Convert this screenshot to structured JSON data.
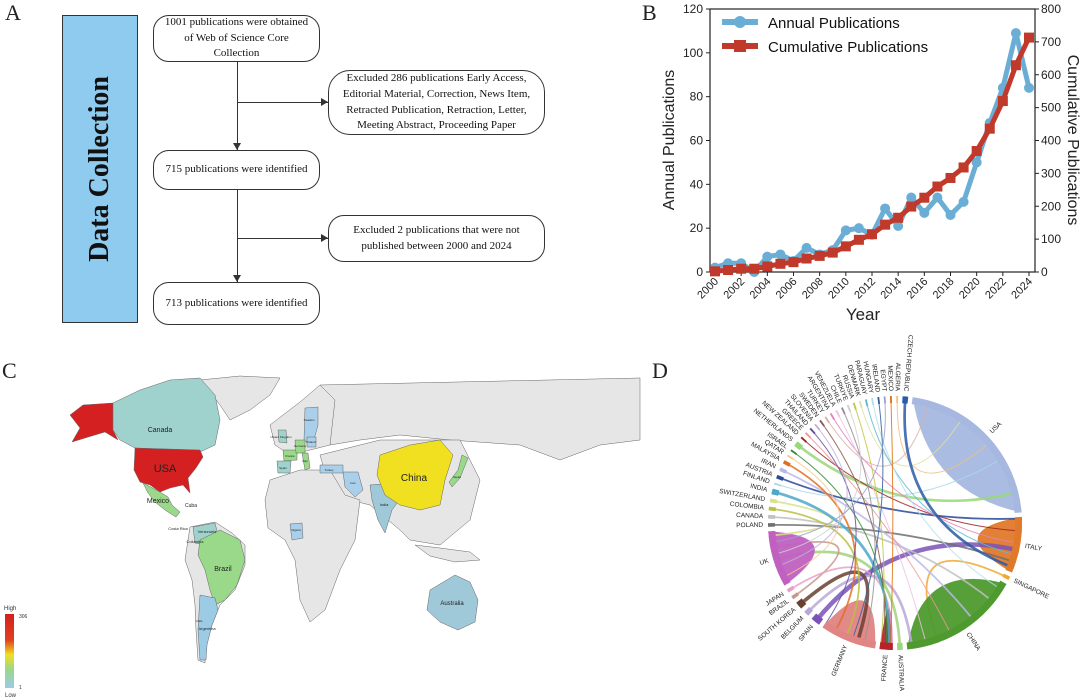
{
  "panels": {
    "a": "A",
    "b": "B",
    "c": "C",
    "d": "D"
  },
  "flowchart": {
    "side_label": "Data Collection",
    "box1": "1001  publications were obtained of Web of Science Core Collection",
    "box2": "Excluded 286 publications Early Access, Editorial Material,  Correction, News Item, Retracted Publication, Retraction, Letter, Meeting Abstract, Proceeding Paper",
    "box3": "715 publications were identified",
    "box4": "Excluded 2 publications that were not published between 2000 and 2024",
    "box5": "713 publications were identified"
  },
  "chart_data": {
    "type": "line",
    "xlabel": "Year",
    "ylabel": "Annual Publications",
    "ylabel_right": "Cumulative Publications",
    "x": [
      2000,
      2001,
      2002,
      2003,
      2004,
      2005,
      2006,
      2007,
      2008,
      2009,
      2010,
      2011,
      2012,
      2013,
      2014,
      2015,
      2016,
      2017,
      2018,
      2019,
      2020,
      2021,
      2022,
      2023,
      2024
    ],
    "x_ticks": [
      "2000",
      "2002",
      "2004",
      "2006",
      "2008",
      "2010",
      "2012",
      "2014",
      "2016",
      "2018",
      "2020",
      "2022",
      "2024"
    ],
    "ylim": [
      0,
      120
    ],
    "y_ticks": [
      "0",
      "20",
      "40",
      "60",
      "80",
      "100",
      "120"
    ],
    "ylim_right": [
      0,
      800
    ],
    "y_ticks_right": [
      "0",
      "100",
      "200",
      "300",
      "400",
      "500",
      "600",
      "700",
      "800"
    ],
    "legend_position": "top-left",
    "series": [
      {
        "name": "Annual Publications",
        "axis": "left",
        "color": "#6aaed6",
        "marker": "circle",
        "values": [
          2,
          4,
          4,
          0,
          7,
          8,
          5,
          11,
          8,
          10,
          19,
          20,
          17,
          29,
          21,
          34,
          27,
          34,
          26,
          32,
          50,
          68,
          84,
          109,
          84
        ]
      },
      {
        "name": "Cumulative Publications",
        "axis": "right",
        "color": "#c0392b",
        "marker": "square",
        "values": [
          2,
          6,
          10,
          10,
          17,
          25,
          30,
          41,
          49,
          59,
          78,
          98,
          115,
          144,
          165,
          199,
          226,
          260,
          286,
          318,
          368,
          436,
          520,
          629,
          713
        ]
      }
    ]
  },
  "map": {
    "legend": {
      "high": "High",
      "low": "Low",
      "max": "306",
      "min": "1"
    },
    "colors": {
      "ocean": "#ffffff",
      "no_data": "#e6e6e6",
      "usa": "#d42020",
      "china": "#f0e020",
      "green": "#9ad88a",
      "teal": "#9fd2cc",
      "blue": "#9ccbe6",
      "lightblue": "#a9cfea"
    },
    "labels": {
      "canada": "Canada",
      "usa": "USA",
      "mexico": "Mexico",
      "cuba": "Cuba",
      "costa_rica": "Costa Rica",
      "venezuela": "Venezuela",
      "columbia": "Columbia",
      "brazil": "Brazil",
      "argentina": "Argentina",
      "chile": "Chile",
      "uk": "United Kingdom",
      "sweden": "Sweden",
      "poland": "Poland",
      "germany": "Germany",
      "france": "France",
      "spain": "Spain",
      "italy": "Italy",
      "turkey": "Turkey",
      "iran": "Iran",
      "nigeria": "Nigeria",
      "india": "India",
      "china": "China",
      "japan": "Japan",
      "australia": "Australia"
    }
  },
  "chord": {
    "countries": [
      {
        "name": "USA",
        "weight": 90,
        "color": "#a7b8e0"
      },
      {
        "name": "ITALY",
        "weight": 30,
        "color": "#e07a2a"
      },
      {
        "name": "SINGAPORE",
        "weight": 2,
        "color": "#f0a830"
      },
      {
        "name": "CHINA",
        "weight": 65,
        "color": "#4e9a2e"
      },
      {
        "name": "AUSTRALIA",
        "weight": 3,
        "color": "#9ed47a"
      },
      {
        "name": "FRANCE",
        "weight": 7,
        "color": "#b8202a"
      },
      {
        "name": "GERMANY",
        "weight": 30,
        "color": "#e08484"
      },
      {
        "name": "SPAIN",
        "weight": 5,
        "color": "#7a52b8"
      },
      {
        "name": "BELGIUM",
        "weight": 3,
        "color": "#b8a8d8"
      },
      {
        "name": "SOUTH KOREA",
        "weight": 4,
        "color": "#6a4030"
      },
      {
        "name": "BRAZIL",
        "weight": 2,
        "color": "#c89888"
      },
      {
        "name": "JAPAN",
        "weight": 2,
        "color": "#e8a0c8"
      },
      {
        "name": "UK",
        "weight": 30,
        "color": "#c060c0"
      },
      {
        "name": "POLAND",
        "weight": 2,
        "color": "#707070"
      },
      {
        "name": "CANADA",
        "weight": 2,
        "color": "#c0c0c0"
      },
      {
        "name": "COLOMBIA",
        "weight": 2,
        "color": "#b8c040"
      },
      {
        "name": "SWITZERLAND",
        "weight": 2,
        "color": "#d8e088"
      },
      {
        "name": "INDIA",
        "weight": 3,
        "color": "#4aa8c8"
      },
      {
        "name": "FINLAND",
        "weight": 1,
        "color": "#a8d8e8"
      },
      {
        "name": "AUSTRIA",
        "weight": 2,
        "color": "#2a4a98"
      },
      {
        "name": "IRAN",
        "weight": 2,
        "color": "#b8b8e8"
      },
      {
        "name": "MALAYSIA",
        "weight": 2,
        "color": "#e07020"
      },
      {
        "name": "QATAR",
        "weight": 1,
        "color": "#f8c890"
      },
      {
        "name": "ISRAEL",
        "weight": 1,
        "color": "#3a8a3a"
      },
      {
        "name": "NETHERLANDS",
        "weight": 3,
        "color": "#98d878"
      },
      {
        "name": "NEW ZEALAND",
        "weight": 1,
        "color": "#a02020"
      },
      {
        "name": "GREECE",
        "weight": 1,
        "color": "#f09898"
      },
      {
        "name": "THAILAND",
        "weight": 1,
        "color": "#6050a0"
      },
      {
        "name": "SLOVENIA",
        "weight": 1,
        "color": "#c0b0d8"
      },
      {
        "name": "SWEDEN",
        "weight": 1,
        "color": "#8a5a4a"
      },
      {
        "name": "TURKEY",
        "weight": 1,
        "color": "#d8b0a8"
      },
      {
        "name": "ARGENTINA",
        "weight": 1,
        "color": "#e880c0"
      },
      {
        "name": "VENEZUELA",
        "weight": 1,
        "color": "#f0c0e0"
      },
      {
        "name": "CHILE",
        "weight": 1,
        "color": "#909090"
      },
      {
        "name": "TURKIYE",
        "weight": 1,
        "color": "#d0d0d0"
      },
      {
        "name": "RUSSIA",
        "weight": 1,
        "color": "#c0c840"
      },
      {
        "name": "DENMARK",
        "weight": 1,
        "color": "#e0e0a0"
      },
      {
        "name": "PARAGUAY",
        "weight": 1,
        "color": "#60b8d0"
      },
      {
        "name": "HUNGARY",
        "weight": 1,
        "color": "#b0e0f0"
      },
      {
        "name": "IRELAND",
        "weight": 1,
        "color": "#3060a0"
      },
      {
        "name": "EGYPT",
        "weight": 1,
        "color": "#a0a0d0"
      },
      {
        "name": "MEXICO",
        "weight": 1,
        "color": "#e07010"
      },
      {
        "name": "ALGERIA",
        "weight": 1,
        "color": "#f0c080"
      },
      {
        "name": "CZECH REPUBLIC",
        "weight": 3,
        "color": "#2a5aa8"
      }
    ]
  }
}
